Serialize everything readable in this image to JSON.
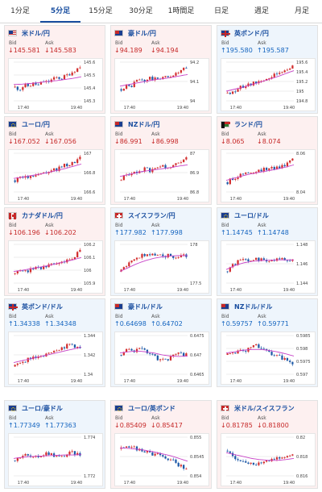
{
  "tabs": [
    "1分足",
    "5分足",
    "15分足",
    "30分足",
    "1時間足",
    "日足",
    "週足",
    "月足"
  ],
  "active_tab": "5分足",
  "labels": {
    "bid": "Bid",
    "ask": "Ask"
  },
  "pairs": [
    {
      "name": "米ドル/円",
      "flag": "us-flag-icon",
      "bid": "145.581",
      "ask": "145.583",
      "direction": "down",
      "y_ticks": [
        "145.6",
        "145.5",
        "145.4",
        "145.3"
      ],
      "x_ticks": [
        "17:40",
        "19:40"
      ],
      "chart_data": {
        "type": "candlestick",
        "trend": [
          0.35,
          0.3,
          0.4,
          0.38,
          0.45,
          0.4,
          0.5,
          0.48,
          0.55,
          0.6,
          0.58,
          0.65,
          0.72,
          0.8,
          0.88
        ],
        "ma": [
          0.42,
          0.43,
          0.45,
          0.47,
          0.5,
          0.52,
          0.55,
          0.58,
          0.62
        ]
      }
    },
    {
      "name": "豪ドル/円",
      "flag": "au-flag-icon",
      "bid": "94.189",
      "ask": "94.194",
      "direction": "down",
      "y_ticks": [
        "94.2",
        "94.1",
        "94"
      ],
      "x_ticks": [
        "17:40",
        "19:40"
      ],
      "chart_data": {
        "type": "candlestick",
        "trend": [
          0.3,
          0.4,
          0.35,
          0.5,
          0.55,
          0.5,
          0.6,
          0.55,
          0.58,
          0.62,
          0.6,
          0.68,
          0.7,
          0.78,
          0.85
        ],
        "ma": [
          0.38,
          0.42,
          0.46,
          0.5,
          0.54,
          0.57,
          0.6,
          0.64,
          0.68
        ]
      }
    },
    {
      "name": "英ポンド/円",
      "flag": "uk-flag-icon",
      "bid": "195.580",
      "ask": "195.587",
      "direction": "up",
      "y_ticks": [
        "195.6",
        "195.4",
        "195.2",
        "195",
        "194.8"
      ],
      "x_ticks": [
        "17:40",
        "19:40"
      ],
      "chart_data": {
        "type": "candlestick",
        "trend": [
          0.2,
          0.25,
          0.3,
          0.35,
          0.4,
          0.42,
          0.48,
          0.5,
          0.55,
          0.6,
          0.65,
          0.7,
          0.75,
          0.82,
          0.9
        ],
        "ma": [
          0.25,
          0.3,
          0.35,
          0.42,
          0.48,
          0.55,
          0.62,
          0.7,
          0.78
        ]
      }
    },
    {
      "name": "ユーロ/円",
      "flag": "eu-flag-icon",
      "bid": "167.052",
      "ask": "167.056",
      "direction": "down",
      "y_ticks": [
        "167",
        "166.8",
        "166.6"
      ],
      "x_ticks": [
        "17:40",
        "19:40"
      ],
      "chart_data": {
        "type": "candlestick",
        "trend": [
          0.3,
          0.35,
          0.4,
          0.38,
          0.45,
          0.5,
          0.48,
          0.55,
          0.6,
          0.58,
          0.65,
          0.7,
          0.72,
          0.8,
          0.88
        ],
        "ma": [
          0.35,
          0.38,
          0.42,
          0.46,
          0.5,
          0.55,
          0.6,
          0.66,
          0.72
        ]
      }
    },
    {
      "name": "NZドル/円",
      "flag": "nz-flag-icon",
      "bid": "86.991",
      "ask": "86.998",
      "direction": "down",
      "y_ticks": [
        "87",
        "86.9",
        "86.8"
      ],
      "x_ticks": [
        "17:40",
        "19:40"
      ],
      "chart_data": {
        "type": "candlestick",
        "trend": [
          0.3,
          0.45,
          0.4,
          0.55,
          0.5,
          0.6,
          0.55,
          0.62,
          0.58,
          0.65,
          0.6,
          0.68,
          0.7,
          0.75,
          0.85
        ],
        "ma": [
          0.4,
          0.45,
          0.5,
          0.54,
          0.57,
          0.6,
          0.63,
          0.67,
          0.7
        ]
      }
    },
    {
      "name": "ランド/円",
      "flag": "za-flag-icon",
      "bid": "8.065",
      "ask": "8.074",
      "direction": "down",
      "y_ticks": [
        "8.06",
        "8.04"
      ],
      "x_ticks": [
        "17:40",
        "19:40"
      ],
      "chart_data": {
        "type": "candlestick",
        "trend": [
          0.25,
          0.35,
          0.4,
          0.45,
          0.5,
          0.48,
          0.52,
          0.55,
          0.6,
          0.58,
          0.62,
          0.65,
          0.68,
          0.78,
          0.9
        ],
        "ma": [
          0.3,
          0.36,
          0.42,
          0.47,
          0.51,
          0.55,
          0.59,
          0.64,
          0.7
        ]
      }
    },
    {
      "name": "カナダドル/円",
      "flag": "ca-flag-icon",
      "bid": "106.196",
      "ask": "106.202",
      "direction": "down",
      "y_ticks": [
        "106.2",
        "106.1",
        "106",
        "105.9"
      ],
      "x_ticks": [
        "17:40",
        "19:40"
      ],
      "chart_data": {
        "type": "candlestick",
        "trend": [
          0.25,
          0.3,
          0.35,
          0.32,
          0.38,
          0.42,
          0.4,
          0.45,
          0.5,
          0.48,
          0.55,
          0.6,
          0.62,
          0.72,
          0.88
        ],
        "ma": [
          0.3,
          0.33,
          0.37,
          0.41,
          0.45,
          0.5,
          0.55,
          0.6,
          0.66
        ]
      }
    },
    {
      "name": "スイスフラン/円",
      "flag": "ch-flag-icon",
      "bid": "177.982",
      "ask": "177.998",
      "direction": "up",
      "y_ticks": [
        "178",
        "177.5"
      ],
      "x_ticks": [
        "17:40",
        "19:40"
      ],
      "chart_data": {
        "type": "candlestick",
        "trend": [
          0.3,
          0.45,
          0.55,
          0.65,
          0.7,
          0.72,
          0.75,
          0.74,
          0.72,
          0.7,
          0.72,
          0.7,
          0.68,
          0.7,
          0.68
        ],
        "ma": [
          0.3,
          0.4,
          0.5,
          0.58,
          0.64,
          0.68,
          0.7,
          0.71,
          0.71
        ]
      }
    },
    {
      "name": "ユーロ/ドル",
      "flag": "eu-flag-icon",
      "bid": "1.14745",
      "ask": "1.14748",
      "direction": "up",
      "y_ticks": [
        "1.148",
        "1.146",
        "1.144"
      ],
      "x_ticks": [
        "17:40",
        "19:40"
      ],
      "chart_data": {
        "type": "candlestick",
        "trend": [
          0.3,
          0.45,
          0.55,
          0.6,
          0.58,
          0.62,
          0.65,
          0.6,
          0.62,
          0.58,
          0.6,
          0.62,
          0.6,
          0.58,
          0.6
        ],
        "ma": [
          0.35,
          0.45,
          0.52,
          0.56,
          0.58,
          0.59,
          0.6,
          0.6,
          0.6
        ]
      }
    },
    {
      "name": "英ポンド/ドル",
      "flag": "uk-flag-icon",
      "bid": "1.34338",
      "ask": "1.34348",
      "direction": "up",
      "y_ticks": [
        "1.344",
        "1.342",
        "1.34"
      ],
      "x_ticks": [
        "17:40",
        "19:40"
      ],
      "chart_data": {
        "type": "candlestick",
        "trend": [
          0.2,
          0.3,
          0.35,
          0.4,
          0.45,
          0.42,
          0.5,
          0.55,
          0.6,
          0.65,
          0.68,
          0.72,
          0.78,
          0.72,
          0.65
        ],
        "ma": [
          0.3,
          0.35,
          0.4,
          0.45,
          0.5,
          0.55,
          0.6,
          0.65,
          0.7
        ]
      }
    },
    {
      "name": "豪ドル/ドル",
      "flag": "au-flag-icon",
      "bid": "0.64698",
      "ask": "0.64702",
      "direction": "up",
      "y_ticks": [
        "0.6475",
        "0.647",
        "0.6465"
      ],
      "x_ticks": [
        "17:40",
        "19:40"
      ],
      "chart_data": {
        "type": "candlestick",
        "trend": [
          0.5,
          0.6,
          0.65,
          0.6,
          0.7,
          0.62,
          0.55,
          0.45,
          0.4,
          0.35,
          0.4,
          0.5,
          0.55,
          0.52,
          0.5
        ],
        "ma": [
          0.55,
          0.58,
          0.6,
          0.58,
          0.55,
          0.5,
          0.47,
          0.46,
          0.47
        ]
      }
    },
    {
      "name": "NZドル/ドル",
      "flag": "nz-flag-icon",
      "bid": "0.59757",
      "ask": "0.59771",
      "direction": "up",
      "y_ticks": [
        "0.5985",
        "0.598",
        "0.5975",
        "0.597"
      ],
      "x_ticks": [
        "17:40",
        "19:40"
      ],
      "chart_data": {
        "type": "candlestick",
        "trend": [
          0.5,
          0.55,
          0.6,
          0.65,
          0.62,
          0.7,
          0.75,
          0.68,
          0.6,
          0.55,
          0.5,
          0.45,
          0.4,
          0.35,
          0.3
        ],
        "ma": [
          0.55,
          0.58,
          0.62,
          0.64,
          0.64,
          0.62,
          0.58,
          0.53,
          0.47
        ]
      }
    },
    {
      "name": "ユーロ/豪ドル",
      "flag": "eu-flag-icon",
      "bid": "1.77349",
      "ask": "1.77363",
      "direction": "up",
      "y_ticks": [
        "1.774",
        "1.772"
      ],
      "x_ticks": [
        "17:40",
        "19:40"
      ],
      "chart_data": {
        "type": "candlestick",
        "trend": [
          0.4,
          0.5,
          0.55,
          0.5,
          0.45,
          0.5,
          0.55,
          0.6,
          0.55,
          0.5,
          0.48,
          0.55,
          0.6,
          0.58,
          0.55
        ],
        "ma": [
          0.45,
          0.48,
          0.5,
          0.51,
          0.52,
          0.53,
          0.54,
          0.54,
          0.55
        ]
      }
    },
    {
      "name": "ユーロ/英ポンド",
      "flag": "eu-flag-icon",
      "bid": "0.85409",
      "ask": "0.85417",
      "direction": "down",
      "y_ticks": [
        "0.855",
        "0.8545",
        "0.854"
      ],
      "x_ticks": [
        "17:40",
        "19:40"
      ],
      "chart_data": {
        "type": "candlestick",
        "trend": [
          0.7,
          0.75,
          0.7,
          0.72,
          0.68,
          0.65,
          0.6,
          0.55,
          0.58,
          0.5,
          0.45,
          0.4,
          0.3,
          0.25,
          0.2
        ],
        "ma": [
          0.72,
          0.71,
          0.69,
          0.66,
          0.62,
          0.57,
          0.52,
          0.45,
          0.38
        ]
      }
    },
    {
      "name": "米ドル/スイスフラン",
      "flag": "ch-flag-icon",
      "bid": "0.81785",
      "ask": "0.81800",
      "direction": "down",
      "y_ticks": [
        "0.82",
        "0.818",
        "0.816"
      ],
      "x_ticks": [
        "17:40",
        "19:40"
      ],
      "chart_data": {
        "type": "candlestick",
        "trend": [
          0.65,
          0.55,
          0.45,
          0.4,
          0.35,
          0.3,
          0.32,
          0.35,
          0.38,
          0.4,
          0.42,
          0.45,
          0.5,
          0.52,
          0.55
        ],
        "ma": [
          0.6,
          0.55,
          0.5,
          0.45,
          0.42,
          0.4,
          0.4,
          0.42,
          0.45
        ]
      }
    }
  ]
}
